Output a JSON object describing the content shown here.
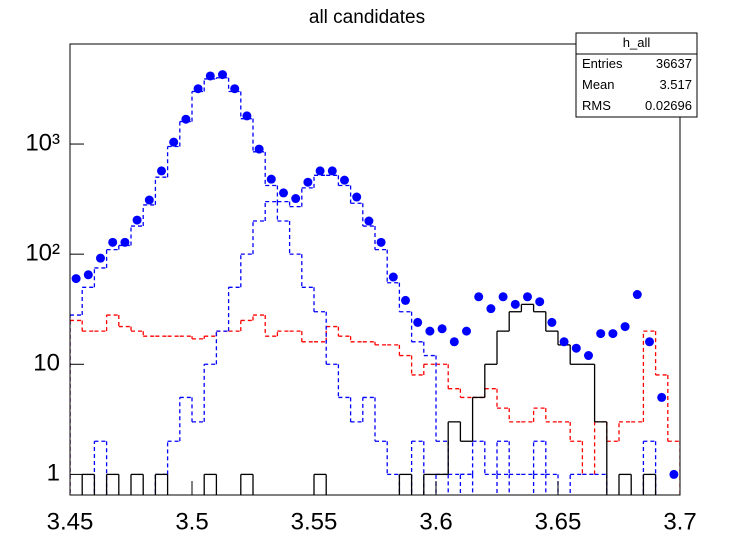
{
  "chart_data": {
    "type": "histogram",
    "title": "all candidates",
    "xlim": [
      3.45,
      3.7
    ],
    "xticks": [
      3.45,
      3.5,
      3.55,
      3.6,
      3.65,
      3.7
    ],
    "ylim": [
      0.65,
      8100
    ],
    "log_y": true,
    "yticks": [
      1,
      10,
      {
        "value": 100,
        "label": "10²"
      },
      {
        "value": 1000,
        "label": "10³"
      }
    ],
    "series": [
      {
        "style": "dashed",
        "color": "#ff0000",
        "values": [
          25,
          20,
          20,
          28,
          22,
          20,
          18,
          18,
          18,
          18,
          17,
          18,
          20,
          20,
          25,
          28,
          18,
          20,
          20,
          16,
          16,
          22,
          18,
          16,
          16,
          15,
          15,
          12,
          8,
          10,
          10,
          6,
          5,
          5,
          6,
          4,
          3,
          3,
          4,
          3,
          3,
          2,
          1,
          3,
          2,
          3,
          3,
          20,
          8,
          2
        ]
      },
      {
        "style": "dashed",
        "color": "#0000ff",
        "values": [
          null,
          null,
          2,
          null,
          null,
          null,
          null,
          1,
          2,
          5,
          3,
          10,
          20,
          50,
          100,
          200,
          300,
          200,
          100,
          50,
          30,
          10,
          5,
          3,
          5,
          2,
          1,
          null,
          2,
          null,
          1,
          null,
          1,
          null,
          null,
          1,
          null,
          null,
          1,
          null,
          null,
          null,
          null,
          null,
          null,
          null,
          null,
          null,
          null,
          null
        ]
      },
      {
        "style": "dashed",
        "color": "#0000ff",
        "values": [
          28,
          50,
          75,
          110,
          120,
          180,
          280,
          500,
          950,
          1600,
          3000,
          3900,
          4000,
          3000,
          1700,
          850,
          420,
          300,
          270,
          400,
          520,
          520,
          420,
          290,
          180,
          110,
          55,
          30,
          16,
          12,
          2,
          1,
          1,
          2,
          1,
          2,
          1,
          1,
          2,
          1,
          null,
          1,
          1,
          1,
          null,
          null,
          null,
          2,
          null,
          null
        ]
      },
      {
        "style": "solid",
        "color": "#000000",
        "values": [
          null,
          1,
          null,
          1,
          null,
          1,
          null,
          1,
          null,
          null,
          null,
          1,
          null,
          null,
          1,
          null,
          null,
          null,
          null,
          null,
          1,
          null,
          null,
          null,
          null,
          null,
          null,
          1,
          null,
          1,
          1,
          3,
          2,
          5,
          10,
          20,
          30,
          35,
          30,
          20,
          15,
          10,
          10,
          3,
          null,
          1,
          null,
          1,
          null,
          null
        ]
      },
      {
        "style": "points",
        "color": "#0000ff",
        "values": [
          60,
          65,
          92,
          128,
          128,
          204,
          310,
          570,
          1040,
          1680,
          3180,
          4150,
          4270,
          3180,
          1800,
          900,
          480,
          360,
          320,
          450,
          570,
          570,
          470,
          330,
          200,
          128,
          62,
          38,
          24,
          20,
          21,
          16,
          20,
          41,
          32,
          41,
          35,
          41,
          37,
          24,
          16,
          14,
          12,
          19,
          19,
          22,
          43,
          16,
          5,
          1
        ]
      }
    ],
    "stats": {
      "title": "h_all",
      "rows": [
        [
          "Entries",
          36637
        ],
        [
          "Mean",
          3.517
        ],
        [
          "RMS",
          0.02696
        ]
      ]
    }
  }
}
